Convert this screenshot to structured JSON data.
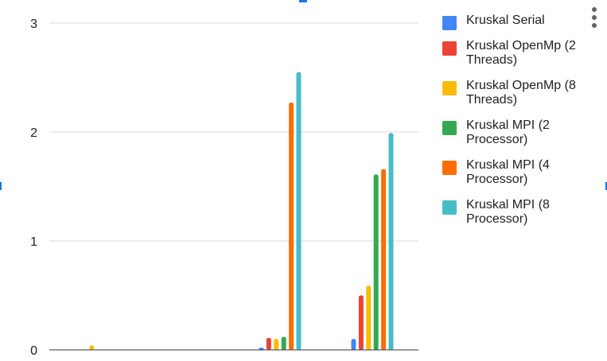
{
  "chart_data": {
    "type": "bar",
    "categories": [
      "",
      "",
      "",
      ""
    ],
    "series": [
      {
        "name": "Kruskal Serial",
        "color": "#4285f4",
        "values": [
          0.0,
          0.0,
          0.02,
          0.1
        ]
      },
      {
        "name": "Kruskal OpenMp (2 Threads)",
        "color": "#ea4335",
        "values": [
          0.0,
          0.0,
          0.11,
          0.5
        ]
      },
      {
        "name": "Kruskal OpenMp (8 Threads)",
        "color": "#fbbc04",
        "values": [
          0.04,
          0.0,
          0.1,
          0.59
        ]
      },
      {
        "name": "Kruskal MPI (2 Processor)",
        "color": "#34a853",
        "values": [
          0.0,
          0.0,
          0.12,
          1.61
        ]
      },
      {
        "name": "Kruskal MPI (4 Processor)",
        "color": "#ff6d01",
        "values": [
          0.0,
          0.0,
          2.27,
          1.66
        ]
      },
      {
        "name": "Kruskal MPI (8 Processor)",
        "color": "#46bdc6",
        "values": [
          0.0,
          0.0,
          2.55,
          1.99
        ]
      }
    ],
    "ylim": [
      0,
      3
    ],
    "yticks": [
      "0",
      "1",
      "2",
      "3"
    ],
    "grid": true,
    "legend_position": "right",
    "title": "",
    "xlabel": "",
    "ylabel": ""
  },
  "legend": {
    "items": [
      {
        "line1": "Kruskal Serial",
        "line2": "",
        "color": "#4285f4"
      },
      {
        "line1": "Kruskal OpenMp (2",
        "line2": "Threads)",
        "color": "#ea4335"
      },
      {
        "line1": "Kruskal OpenMp (8",
        "line2": "Threads)",
        "color": "#fbbc04"
      },
      {
        "line1": "Kruskal MPI (2",
        "line2": "Processor)",
        "color": "#34a853"
      },
      {
        "line1": "Kruskal MPI (4",
        "line2": "Processor)",
        "color": "#ff6d01"
      },
      {
        "line1": "Kruskal MPI (8",
        "line2": "Processor)",
        "color": "#46bdc6"
      }
    ]
  },
  "menu": {
    "icon": "more-vert-icon"
  },
  "colors": {
    "grid": "#d9d9d9",
    "axis": "#333333",
    "tick_label": "#202124",
    "selection_handle": "#1a73e8"
  }
}
